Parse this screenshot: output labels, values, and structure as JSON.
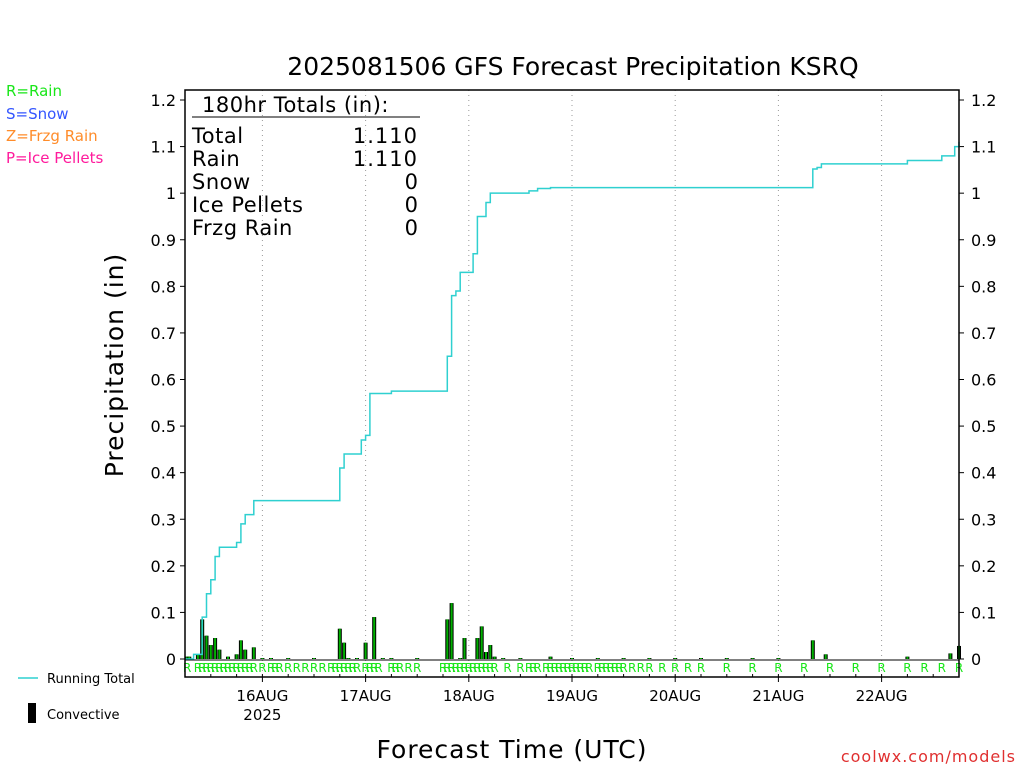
{
  "colors": {
    "running_total": "#2fd0d0",
    "convective": "#000000",
    "precip_bar": "#00b000",
    "rain": "#19e619",
    "snow": "#3355ff",
    "frzg_rain": "#ff8c2a",
    "ice_pellets": "#ff1a9c",
    "watermark": "#e03030",
    "grid": "#9a9a9a"
  },
  "ptype_legend": [
    "R=Rain",
    "S=Snow",
    "Z=Frzg Rain",
    "P=Ice Pellets"
  ],
  "series_legend": {
    "running_total": "Running Total",
    "convective": "Convective"
  },
  "totals_box": {
    "header": "180hr Totals (in):",
    "rows": [
      {
        "label": "Total",
        "value": "1.110"
      },
      {
        "label": "Rain",
        "value": "1.110"
      },
      {
        "label": "Snow",
        "value": "0"
      },
      {
        "label": "Ice Pellets",
        "value": "0"
      },
      {
        "label": "Frzg Rain",
        "value": "0"
      }
    ]
  },
  "watermark": "coolwx.com/models",
  "chart_data": {
    "type": "bar+line",
    "title": "2025081506 GFS Forecast Precipitation KSRQ",
    "xlabel": "Forecast Time (UTC)",
    "ylabel": "Precipitation (in)",
    "ylim": [
      0,
      1.2
    ],
    "yticks": [
      "0",
      "0.1",
      "0.2",
      "0.3",
      "0.4",
      "0.5",
      "0.6",
      "0.7",
      "0.8",
      "0.9",
      "1",
      "1.1",
      "1.2"
    ],
    "xlim_hours": [
      0,
      180
    ],
    "xticks": [
      {
        "hour": 18,
        "label": "16AUG",
        "sublabel": "2025"
      },
      {
        "hour": 42,
        "label": "17AUG"
      },
      {
        "hour": 66,
        "label": "18AUG"
      },
      {
        "hour": 90,
        "label": "19AUG"
      },
      {
        "hour": 114,
        "label": "20AUG"
      },
      {
        "hour": 138,
        "label": "21AUG"
      },
      {
        "hour": 162,
        "label": "22AUG"
      }
    ],
    "running_total": [
      [
        0,
        0
      ],
      [
        2,
        0.01
      ],
      [
        3,
        0.01
      ],
      [
        4,
        0.09
      ],
      [
        5,
        0.14
      ],
      [
        6,
        0.17
      ],
      [
        7,
        0.22
      ],
      [
        8,
        0.24
      ],
      [
        9,
        0.24
      ],
      [
        10,
        0.24
      ],
      [
        11,
        0.24
      ],
      [
        12,
        0.25
      ],
      [
        13,
        0.29
      ],
      [
        14,
        0.31
      ],
      [
        15,
        0.31
      ],
      [
        16,
        0.34
      ],
      [
        17,
        0.34
      ],
      [
        18,
        0.34
      ],
      [
        19,
        0.34
      ],
      [
        20,
        0.34
      ],
      [
        21,
        0.34
      ],
      [
        22,
        0.34
      ],
      [
        24,
        0.34
      ],
      [
        27,
        0.34
      ],
      [
        30,
        0.34
      ],
      [
        33,
        0.34
      ],
      [
        34,
        0.34
      ],
      [
        35,
        0.34
      ],
      [
        36,
        0.41
      ],
      [
        37,
        0.44
      ],
      [
        38,
        0.44
      ],
      [
        39,
        0.44
      ],
      [
        40,
        0.44
      ],
      [
        41,
        0.47
      ],
      [
        42,
        0.48
      ],
      [
        43,
        0.57
      ],
      [
        44,
        0.57
      ],
      [
        45,
        0.57
      ],
      [
        46,
        0.57
      ],
      [
        47,
        0.57
      ],
      [
        48,
        0.575
      ],
      [
        50,
        0.575
      ],
      [
        54,
        0.575
      ],
      [
        60,
        0.575
      ],
      [
        61,
        0.65
      ],
      [
        62,
        0.78
      ],
      [
        63,
        0.79
      ],
      [
        64,
        0.83
      ],
      [
        65,
        0.83
      ],
      [
        66,
        0.83
      ],
      [
        67,
        0.87
      ],
      [
        68,
        0.95
      ],
      [
        69,
        0.95
      ],
      [
        70,
        0.98
      ],
      [
        71,
        1.0
      ],
      [
        72,
        1.0
      ],
      [
        75,
        1.0
      ],
      [
        78,
        1.0
      ],
      [
        80,
        1.005
      ],
      [
        82,
        1.01
      ],
      [
        84,
        1.01
      ],
      [
        85,
        1.012
      ],
      [
        90,
        1.012
      ],
      [
        96,
        1.012
      ],
      [
        102,
        1.012
      ],
      [
        108,
        1.012
      ],
      [
        114,
        1.012
      ],
      [
        120,
        1.012
      ],
      [
        126,
        1.012
      ],
      [
        132,
        1.012
      ],
      [
        138,
        1.012
      ],
      [
        144,
        1.012
      ],
      [
        146,
        1.052
      ],
      [
        147,
        1.055
      ],
      [
        148,
        1.063
      ],
      [
        150,
        1.063
      ],
      [
        156,
        1.063
      ],
      [
        162,
        1.063
      ],
      [
        168,
        1.07
      ],
      [
        171,
        1.07
      ],
      [
        174,
        1.07
      ],
      [
        176,
        1.08
      ],
      [
        178,
        1.08
      ],
      [
        179,
        1.1
      ],
      [
        180,
        1.11
      ]
    ],
    "convective_bars": [
      [
        0.5,
        0.005
      ],
      [
        1,
        0.005
      ],
      [
        3,
        0.01
      ],
      [
        4,
        0.085
      ],
      [
        5,
        0.05
      ],
      [
        6,
        0.03
      ],
      [
        7,
        0.045
      ],
      [
        8,
        0.02
      ],
      [
        10,
        0.005
      ],
      [
        12,
        0.01
      ],
      [
        13,
        0.04
      ],
      [
        14,
        0.02
      ],
      [
        16,
        0.025
      ],
      [
        18,
        0.002
      ],
      [
        20,
        0.002
      ],
      [
        24,
        0.002
      ],
      [
        30,
        0.002
      ],
      [
        36,
        0.065
      ],
      [
        37,
        0.035
      ],
      [
        38,
        0.002
      ],
      [
        40,
        0.002
      ],
      [
        42,
        0.035
      ],
      [
        44,
        0.09
      ],
      [
        46,
        0.002
      ],
      [
        48,
        0.002
      ],
      [
        54,
        0.002
      ],
      [
        61,
        0.085
      ],
      [
        62,
        0.12
      ],
      [
        64,
        0.002
      ],
      [
        65,
        0.045
      ],
      [
        68,
        0.045
      ],
      [
        69,
        0.07
      ],
      [
        70,
        0.015
      ],
      [
        71,
        0.03
      ],
      [
        72,
        0.005
      ],
      [
        74,
        0.002
      ],
      [
        78,
        0.002
      ],
      [
        85,
        0.005
      ],
      [
        90,
        0.002
      ],
      [
        96,
        0.002
      ],
      [
        102,
        0.002
      ],
      [
        108,
        0.002
      ],
      [
        114,
        0.002
      ],
      [
        120,
        0.002
      ],
      [
        126,
        0.002
      ],
      [
        132,
        0.002
      ],
      [
        138,
        0.002
      ],
      [
        146,
        0.04
      ],
      [
        149,
        0.01
      ],
      [
        168,
        0.005
      ],
      [
        178,
        0.012
      ],
      [
        180,
        0.028
      ]
    ],
    "ptype_markers": {
      "text": "R",
      "hours": [
        0.5,
        3,
        4,
        5,
        6,
        7,
        8,
        9,
        10,
        11,
        12,
        13,
        14,
        15,
        16,
        18,
        20,
        21,
        22,
        24,
        26,
        28,
        30,
        32,
        34,
        35,
        36,
        37,
        38,
        39,
        40,
        42,
        43,
        44,
        45,
        48,
        49,
        50,
        52,
        54,
        60,
        61,
        62,
        63,
        64,
        65,
        66,
        67,
        68,
        69,
        70,
        71,
        72,
        75,
        78,
        80,
        81,
        82,
        84,
        85,
        86,
        87,
        88,
        89,
        90,
        91,
        92,
        93,
        94,
        96,
        97,
        98,
        99,
        100,
        101,
        102,
        104,
        106,
        108,
        111,
        114,
        117,
        120,
        126,
        132,
        138,
        144,
        150,
        156,
        162,
        168,
        172,
        176,
        180
      ]
    }
  }
}
